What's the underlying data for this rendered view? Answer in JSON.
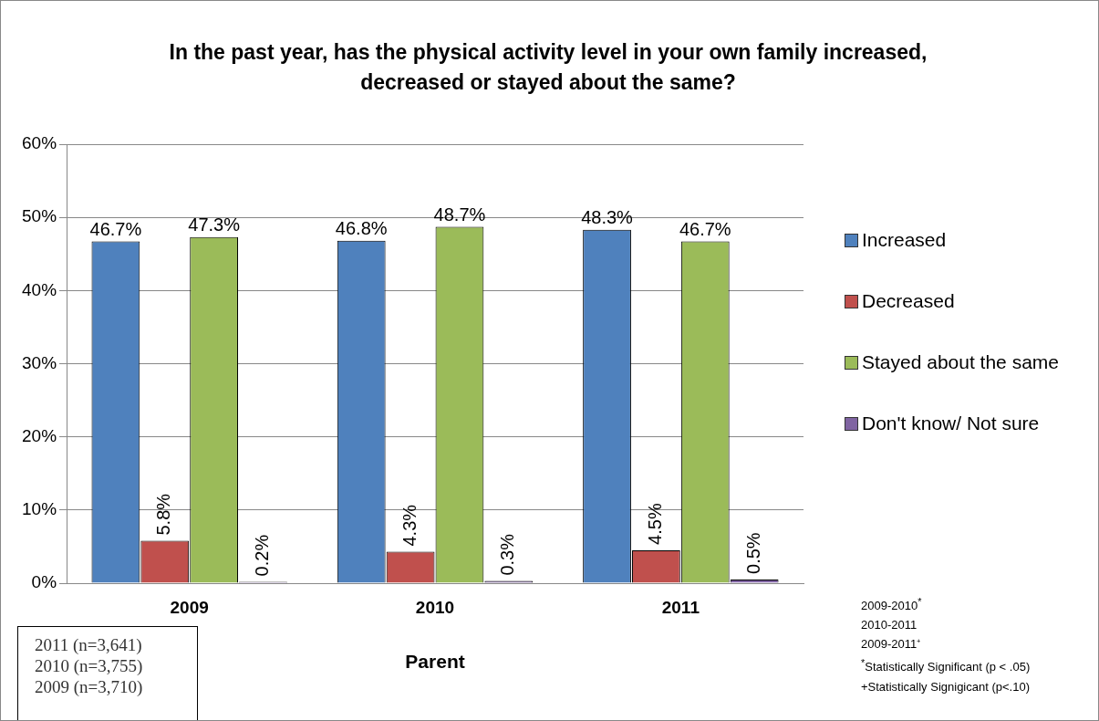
{
  "chart_data": {
    "type": "bar",
    "title": "In the past year, has the physical activity level in your own family increased, decreased or stayed about the same?",
    "xlabel": "Parent",
    "categories": [
      "2009",
      "2010",
      "2011"
    ],
    "series": [
      {
        "name": "Increased",
        "color": "#4f81bd",
        "values": [
          46.7,
          46.8,
          48.3
        ],
        "value_labels": [
          "46.7%",
          "46.8%",
          "48.3%"
        ]
      },
      {
        "name": "Decreased",
        "color": "#c0504d",
        "values": [
          5.8,
          4.3,
          4.5
        ],
        "value_labels": [
          "5.8%",
          "4.3%",
          "4.5%"
        ]
      },
      {
        "name": "Stayed about the same",
        "color": "#9bbb59",
        "values": [
          47.3,
          48.7,
          46.7
        ],
        "value_labels": [
          "47.3%",
          "48.7%",
          "46.7%"
        ]
      },
      {
        "name": "Don't know/ Not sure",
        "color": "#8064a2",
        "values": [
          0.2,
          0.3,
          0.5
        ],
        "value_labels": [
          "0.2%",
          "0.3%",
          "0.5%"
        ]
      }
    ],
    "ylim": [
      0,
      60
    ],
    "yticks": [
      {
        "value": 0,
        "label": "0%"
      },
      {
        "value": 10,
        "label": "10%"
      },
      {
        "value": 20,
        "label": "20%"
      },
      {
        "value": 30,
        "label": "30%"
      },
      {
        "value": 40,
        "label": "40%"
      },
      {
        "value": 50,
        "label": "50%"
      },
      {
        "value": 60,
        "label": "60%"
      }
    ],
    "grid": "y",
    "legend": "right",
    "annotations": [
      "2011 (n=3,641)",
      "2010 (n=3,755)",
      "2009 (n=3,710)",
      "2009-2010$^{*}$",
      "2010-2011",
      "2009-2011⁺",
      "$^{*}$Statistically  Significant (p < .05)",
      "+Statistically Signigicant (p<.10)"
    ]
  }
}
